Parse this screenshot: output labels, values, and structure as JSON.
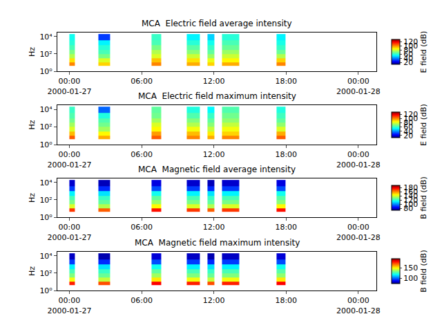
{
  "chart_data": [
    {
      "type": "heatmap",
      "title": "MCA  Electric field average intensity",
      "ylabel": "Hz",
      "x_edges": [
        "2000-01-27 00:00",
        "2000-01-27 00:28",
        "2000-01-27 02:25",
        "2000-01-27 03:23",
        "2000-01-27 06:50",
        "2000-01-27 07:38",
        "2000-01-27 09:46",
        "2000-01-27 10:52",
        "2000-01-27 11:29",
        "2000-01-27 12:04",
        "2000-01-27 12:42",
        "2000-01-27 14:05",
        "2000-01-27 17:14",
        "2000-01-27 17:56"
      ],
      "y_edges": [
        4,
        10,
        30,
        100,
        300,
        1000,
        4000,
        20000
      ],
      "cells": [
        [
          100,
          null,
          90,
          null,
          100,
          null,
          95,
          null,
          90,
          null,
          95,
          null,
          100
        ],
        [
          88,
          null,
          80,
          null,
          92,
          null,
          88,
          null,
          82,
          null,
          85,
          null,
          90
        ],
        [
          75,
          null,
          68,
          null,
          80,
          null,
          78,
          null,
          72,
          null,
          78,
          null,
          75
        ],
        [
          68,
          null,
          62,
          null,
          75,
          null,
          70,
          null,
          65,
          null,
          72,
          null,
          66
        ],
        [
          62,
          null,
          58,
          null,
          68,
          null,
          64,
          null,
          60,
          null,
          66,
          null,
          60
        ],
        [
          58,
          null,
          52,
          null,
          62,
          null,
          58,
          null,
          55,
          null,
          62,
          null,
          56
        ],
        [
          55,
          null,
          30,
          null,
          60,
          null,
          52,
          null,
          48,
          null,
          58,
          null,
          52
        ]
      ],
      "xlim": [
        "2000-01-26 23:00",
        "2000-01-28 01:30"
      ],
      "xticks": [
        {
          "value": "2000-01-27 00:00",
          "label": "00:00\n2000-01-27"
        },
        {
          "value": "2000-01-27 06:00",
          "label": "06:00"
        },
        {
          "value": "2000-01-27 12:00",
          "label": "12:00"
        },
        {
          "value": "2000-01-27 18:00",
          "label": "18:00"
        },
        {
          "value": "2000-01-28 00:00",
          "label": "00:00\n2000-01-28"
        }
      ],
      "ylim": [
        1,
        30000
      ],
      "log": "y",
      "yticks": [
        {
          "value": 1,
          "label": "10⁰"
        },
        {
          "value": 100,
          "label": "10²"
        },
        {
          "value": 10000,
          "label": "10⁴"
        }
      ],
      "colorbar_label": "E field (dB)",
      "colorbar_range": [
        10,
        130
      ],
      "colorbar_ticks": [
        20,
        40,
        60,
        80,
        100,
        120
      ]
    },
    {
      "type": "heatmap",
      "title": "MCA  Electric field maximum intensity",
      "ylabel": "Hz",
      "x_edges": [
        "2000-01-27 00:00",
        "2000-01-27 00:28",
        "2000-01-27 02:25",
        "2000-01-27 03:23",
        "2000-01-27 06:50",
        "2000-01-27 07:38",
        "2000-01-27 09:46",
        "2000-01-27 10:52",
        "2000-01-27 11:29",
        "2000-01-27 12:04",
        "2000-01-27 12:42",
        "2000-01-27 14:05",
        "2000-01-27 17:14",
        "2000-01-27 17:56"
      ],
      "y_edges": [
        4,
        10,
        30,
        100,
        300,
        1000,
        4000,
        20000
      ],
      "cells": [
        [
          105,
          null,
          95,
          null,
          105,
          null,
          100,
          null,
          95,
          null,
          100,
          null,
          105
        ],
        [
          93,
          null,
          85,
          null,
          97,
          null,
          93,
          null,
          87,
          null,
          90,
          null,
          95
        ],
        [
          80,
          null,
          73,
          null,
          85,
          null,
          83,
          null,
          77,
          null,
          83,
          null,
          80
        ],
        [
          73,
          null,
          67,
          null,
          80,
          null,
          75,
          null,
          70,
          null,
          77,
          null,
          71
        ],
        [
          67,
          null,
          63,
          null,
          73,
          null,
          69,
          null,
          65,
          null,
          71,
          null,
          65
        ],
        [
          63,
          null,
          57,
          null,
          67,
          null,
          63,
          null,
          60,
          null,
          67,
          null,
          61
        ],
        [
          60,
          null,
          35,
          null,
          65,
          null,
          57,
          null,
          53,
          null,
          63,
          null,
          57
        ]
      ],
      "xlim": [
        "2000-01-26 23:00",
        "2000-01-28 01:30"
      ],
      "xticks": [
        {
          "value": "2000-01-27 00:00",
          "label": "00:00\n2000-01-27"
        },
        {
          "value": "2000-01-27 06:00",
          "label": "06:00"
        },
        {
          "value": "2000-01-27 12:00",
          "label": "12:00"
        },
        {
          "value": "2000-01-27 18:00",
          "label": "18:00"
        },
        {
          "value": "2000-01-28 00:00",
          "label": "00:00\n2000-01-28"
        }
      ],
      "ylim": [
        1,
        30000
      ],
      "log": "y",
      "yticks": [
        {
          "value": 1,
          "label": "10⁰"
        },
        {
          "value": 100,
          "label": "10²"
        },
        {
          "value": 10000,
          "label": "10⁴"
        }
      ],
      "colorbar_label": "E field (dB)",
      "colorbar_range": [
        10,
        130
      ],
      "colorbar_ticks": [
        20,
        40,
        60,
        80,
        100,
        120
      ]
    },
    {
      "type": "heatmap",
      "title": "MCA  Magnetic field average intensity",
      "ylabel": "Hz",
      "x_edges": [
        "2000-01-27 00:00",
        "2000-01-27 00:28",
        "2000-01-27 02:25",
        "2000-01-27 03:23",
        "2000-01-27 06:50",
        "2000-01-27 07:38",
        "2000-01-27 09:46",
        "2000-01-27 10:52",
        "2000-01-27 11:29",
        "2000-01-27 12:04",
        "2000-01-27 12:42",
        "2000-01-27 14:05",
        "2000-01-27 17:14",
        "2000-01-27 17:56"
      ],
      "y_edges": [
        4,
        10,
        30,
        100,
        300,
        1000,
        4000,
        20000
      ],
      "cells": [
        [
          170,
          null,
          165,
          null,
          175,
          null,
          170,
          null,
          165,
          null,
          170,
          null,
          175
        ],
        [
          140,
          null,
          135,
          null,
          145,
          null,
          140,
          null,
          135,
          null,
          140,
          null,
          145
        ],
        [
          128,
          null,
          125,
          null,
          132,
          null,
          128,
          null,
          125,
          null,
          128,
          null,
          130
        ],
        [
          122,
          null,
          120,
          null,
          125,
          null,
          122,
          null,
          120,
          null,
          122,
          null,
          124
        ],
        [
          112,
          null,
          110,
          null,
          115,
          null,
          112,
          null,
          110,
          null,
          112,
          null,
          115
        ],
        [
          90,
          null,
          88,
          null,
          92,
          null,
          90,
          null,
          88,
          null,
          90,
          null,
          92
        ],
        [
          78,
          null,
          76,
          null,
          80,
          null,
          78,
          null,
          76,
          null,
          78,
          null,
          80
        ]
      ],
      "xlim": [
        "2000-01-26 23:00",
        "2000-01-28 01:30"
      ],
      "xticks": [
        {
          "value": "2000-01-27 00:00",
          "label": "00:00\n2000-01-27"
        },
        {
          "value": "2000-01-27 06:00",
          "label": "06:00"
        },
        {
          "value": "2000-01-27 12:00",
          "label": "12:00"
        },
        {
          "value": "2000-01-27 18:00",
          "label": "18:00"
        },
        {
          "value": "2000-01-28 00:00",
          "label": "00:00\n2000-01-28"
        }
      ],
      "ylim": [
        1,
        30000
      ],
      "log": "y",
      "yticks": [
        {
          "value": 1,
          "label": "10⁰"
        },
        {
          "value": 100,
          "label": "10²"
        },
        {
          "value": 10000,
          "label": "10⁴"
        }
      ],
      "colorbar_label": "B field (dB)",
      "colorbar_range": [
        70,
        190
      ],
      "colorbar_ticks": [
        80,
        100,
        120,
        140,
        160,
        180
      ]
    },
    {
      "type": "heatmap",
      "title": "MCA  Magnetic field maximum intensity",
      "ylabel": "Hz",
      "x_edges": [
        "2000-01-27 00:00",
        "2000-01-27 00:28",
        "2000-01-27 02:25",
        "2000-01-27 03:23",
        "2000-01-27 06:50",
        "2000-01-27 07:38",
        "2000-01-27 09:46",
        "2000-01-27 10:52",
        "2000-01-27 11:29",
        "2000-01-27 12:04",
        "2000-01-27 12:42",
        "2000-01-27 14:05",
        "2000-01-27 17:14",
        "2000-01-27 17:56"
      ],
      "y_edges": [
        4,
        10,
        30,
        100,
        300,
        1000,
        4000,
        20000
      ],
      "cells": [
        [
          178,
          null,
          172,
          null,
          182,
          null,
          178,
          null,
          172,
          null,
          178,
          null,
          182
        ],
        [
          148,
          null,
          142,
          null,
          152,
          null,
          148,
          null,
          142,
          null,
          148,
          null,
          152
        ],
        [
          134,
          null,
          131,
          null,
          138,
          null,
          134,
          null,
          131,
          null,
          134,
          null,
          136
        ],
        [
          127,
          null,
          125,
          null,
          130,
          null,
          127,
          null,
          125,
          null,
          127,
          null,
          129
        ],
        [
          117,
          null,
          115,
          null,
          120,
          null,
          117,
          null,
          115,
          null,
          117,
          null,
          120
        ],
        [
          95,
          null,
          93,
          null,
          97,
          null,
          95,
          null,
          93,
          null,
          95,
          null,
          97
        ],
        [
          82,
          null,
          80,
          null,
          84,
          null,
          82,
          null,
          80,
          null,
          82,
          null,
          84
        ]
      ],
      "xlim": [
        "2000-01-26 23:00",
        "2000-01-28 01:30"
      ],
      "xticks": [
        {
          "value": "2000-01-27 00:00",
          "label": "00:00\n2000-01-27"
        },
        {
          "value": "2000-01-27 06:00",
          "label": "06:00"
        },
        {
          "value": "2000-01-27 12:00",
          "label": "12:00"
        },
        {
          "value": "2000-01-27 18:00",
          "label": "18:00"
        },
        {
          "value": "2000-01-28 00:00",
          "label": "00:00\n2000-01-28"
        }
      ],
      "ylim": [
        1,
        30000
      ],
      "log": "y",
      "yticks": [
        {
          "value": 1,
          "label": "10⁰"
        },
        {
          "value": 100,
          "label": "10²"
        },
        {
          "value": 10000,
          "label": "10⁴"
        }
      ],
      "colorbar_label": "B field (dB)",
      "colorbar_range": [
        75,
        195
      ],
      "colorbar_ticks": [
        100,
        150
      ]
    }
  ]
}
